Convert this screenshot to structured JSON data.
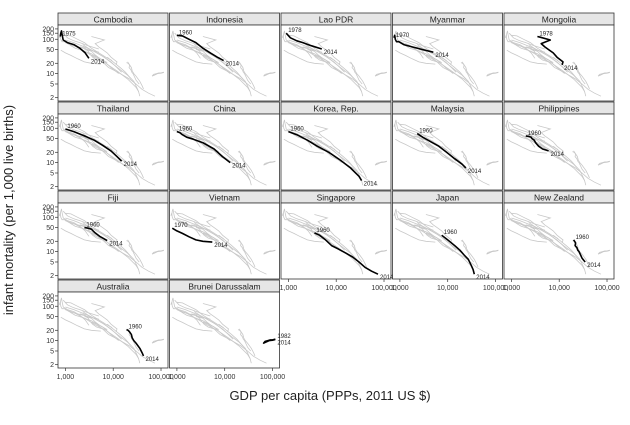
{
  "chart_data": {
    "type": "line",
    "title": "",
    "xlabel": "GDP per capita (PPPs, 2011 US $)",
    "ylabel": "infant mortality (per 1,000 live births)",
    "x_scale": "log",
    "y_scale": "log",
    "xlim": [
      700,
      140000
    ],
    "ylim": [
      1.6,
      260
    ],
    "x_ticks": [
      1000,
      10000,
      100000
    ],
    "x_tick_labels": [
      "1,000",
      "10,000",
      "100,000"
    ],
    "y_ticks": [
      2,
      5,
      10,
      20,
      50,
      100,
      150,
      200
    ],
    "y_tick_labels": [
      "2",
      "5",
      "10",
      "20",
      "50",
      "100",
      "150",
      "200"
    ],
    "grid": false,
    "legend": "none",
    "colors": {
      "highlight": "#000000",
      "background": "#c8c8c8",
      "strip": "#e6e6e6"
    },
    "panels": [
      {
        "name": "Cambodia",
        "start_label": "1975",
        "end_label": "2014",
        "data": [
          [
            780,
            120
          ],
          [
            800,
            150
          ],
          [
            830,
            175
          ],
          [
            850,
            140
          ],
          [
            900,
            95
          ],
          [
            1100,
            80
          ],
          [
            1500,
            70
          ],
          [
            2000,
            55
          ],
          [
            2600,
            40
          ],
          [
            3100,
            28
          ]
        ]
      },
      {
        "name": "Indonesia",
        "start_label": "1960",
        "end_label": "2014",
        "data": [
          [
            1000,
            130
          ],
          [
            1300,
            125
          ],
          [
            1800,
            100
          ],
          [
            2500,
            80
          ],
          [
            3500,
            55
          ],
          [
            5000,
            40
          ],
          [
            7000,
            30
          ],
          [
            9500,
            24
          ]
        ]
      },
      {
        "name": "Lao PDR",
        "start_label": "1978",
        "end_label": "2014",
        "data": [
          [
            900,
            150
          ],
          [
            1100,
            110
          ],
          [
            1500,
            90
          ],
          [
            2000,
            80
          ],
          [
            3000,
            65
          ],
          [
            5000,
            52
          ]
        ]
      },
      {
        "name": "Myanmar",
        "start_label": "1970",
        "end_label": "2014",
        "data": [
          [
            750,
            110
          ],
          [
            780,
            130
          ],
          [
            800,
            100
          ],
          [
            850,
            85
          ],
          [
            950,
            85
          ],
          [
            1200,
            70
          ],
          [
            1800,
            60
          ],
          [
            3000,
            50
          ],
          [
            5000,
            42
          ]
        ]
      },
      {
        "name": "Mongolia",
        "start_label": "1978",
        "end_label": "2014",
        "data": [
          [
            3500,
            120
          ],
          [
            4000,
            115
          ],
          [
            6500,
            95
          ],
          [
            4200,
            75
          ],
          [
            5000,
            60
          ],
          [
            6000,
            50
          ],
          [
            7500,
            40
          ],
          [
            9000,
            30
          ],
          [
            12000,
            22
          ],
          [
            11500,
            18
          ]
        ]
      },
      {
        "name": "Thailand",
        "start_label": "1960",
        "end_label": "2014",
        "data": [
          [
            1000,
            95
          ],
          [
            1500,
            80
          ],
          [
            2500,
            60
          ],
          [
            4000,
            45
          ],
          [
            6000,
            32
          ],
          [
            9000,
            22
          ],
          [
            12000,
            15
          ],
          [
            15000,
            11
          ]
        ]
      },
      {
        "name": "China",
        "start_label": "1960",
        "end_label": "2014",
        "data": [
          [
            1000,
            80
          ],
          [
            1150,
            75
          ],
          [
            1300,
            65
          ],
          [
            1600,
            55
          ],
          [
            2200,
            48
          ],
          [
            3500,
            38
          ],
          [
            6000,
            25
          ],
          [
            9000,
            15
          ],
          [
            13000,
            10
          ]
        ]
      },
      {
        "name": "Korea, Rep.",
        "start_label": "1960",
        "end_label": "2014",
        "data": [
          [
            1000,
            80
          ],
          [
            1500,
            65
          ],
          [
            2500,
            45
          ],
          [
            4000,
            30
          ],
          [
            7000,
            20
          ],
          [
            12000,
            12
          ],
          [
            20000,
            7
          ],
          [
            30000,
            4
          ],
          [
            34000,
            3
          ]
        ]
      },
      {
        "name": "Malaysia",
        "start_label": "1960",
        "end_label": "2014",
        "data": [
          [
            2300,
            70
          ],
          [
            3000,
            55
          ],
          [
            4500,
            40
          ],
          [
            6500,
            30
          ],
          [
            9500,
            20
          ],
          [
            14000,
            13
          ],
          [
            20000,
            9
          ],
          [
            24000,
            7
          ]
        ]
      },
      {
        "name": "Philippines",
        "start_label": "1960",
        "end_label": "2014",
        "data": [
          [
            2000,
            60
          ],
          [
            2300,
            58
          ],
          [
            2600,
            55
          ],
          [
            2700,
            50
          ],
          [
            3000,
            45
          ],
          [
            3200,
            38
          ],
          [
            3700,
            30
          ],
          [
            4500,
            25
          ],
          [
            6000,
            22
          ]
        ]
      },
      {
        "name": "Fiji",
        "start_label": "1960",
        "end_label": "2014",
        "data": [
          [
            2500,
            50
          ],
          [
            3000,
            48
          ],
          [
            3500,
            45
          ],
          [
            3800,
            40
          ],
          [
            4200,
            35
          ],
          [
            5200,
            28
          ],
          [
            6300,
            24
          ],
          [
            7500,
            21
          ]
        ]
      },
      {
        "name": "Vietnam",
        "start_label": "1970",
        "end_label": "2014",
        "data": [
          [
            800,
            48
          ],
          [
            1000,
            40
          ],
          [
            1300,
            34
          ],
          [
            1800,
            27
          ],
          [
            2500,
            22
          ],
          [
            3500,
            20
          ],
          [
            5500,
            19
          ]
        ]
      },
      {
        "name": "Singapore",
        "start_label": "1960",
        "end_label": "2014",
        "data": [
          [
            3500,
            35
          ],
          [
            4500,
            30
          ],
          [
            6000,
            22
          ],
          [
            8000,
            15
          ],
          [
            11000,
            12
          ],
          [
            16000,
            9
          ],
          [
            22000,
            7
          ],
          [
            30000,
            5
          ],
          [
            40000,
            3.5
          ],
          [
            55000,
            2.7
          ],
          [
            75000,
            2.2
          ]
        ]
      },
      {
        "name": "Japan",
        "start_label": "1960",
        "end_label": "2014",
        "data": [
          [
            7500,
            30
          ],
          [
            10000,
            22
          ],
          [
            14000,
            15
          ],
          [
            18000,
            11
          ],
          [
            22000,
            8
          ],
          [
            27000,
            6
          ],
          [
            31000,
            4
          ],
          [
            34000,
            3
          ],
          [
            36000,
            2.2
          ]
        ]
      },
      {
        "name": "New Zealand",
        "start_label": "1960",
        "end_label": "2014",
        "data": [
          [
            20000,
            22
          ],
          [
            21000,
            20
          ],
          [
            22000,
            18
          ],
          [
            21500,
            15
          ],
          [
            23500,
            13
          ],
          [
            24500,
            11
          ],
          [
            26000,
            10
          ],
          [
            28000,
            8
          ],
          [
            30000,
            6.5
          ],
          [
            33000,
            5.5
          ],
          [
            35000,
            5
          ]
        ]
      },
      {
        "name": "Australia",
        "start_label": "1960",
        "end_label": "2014",
        "data": [
          [
            19000,
            21
          ],
          [
            20500,
            20
          ],
          [
            22000,
            18
          ],
          [
            24000,
            15
          ],
          [
            25000,
            12
          ],
          [
            27000,
            10
          ],
          [
            30000,
            8.5
          ],
          [
            36000,
            6
          ],
          [
            40000,
            4.5
          ],
          [
            43000,
            3.6
          ]
        ]
      },
      {
        "name": "Brunei Darussalam",
        "start_label": "1982",
        "end_label": "2014",
        "data": [
          [
            115000,
            11
          ],
          [
            100000,
            10.5
          ],
          [
            90000,
            10.5
          ],
          [
            80000,
            10
          ],
          [
            70000,
            9.5
          ],
          [
            65000,
            8.5
          ],
          [
            72000,
            9
          ],
          [
            85000,
            10
          ],
          [
            100000,
            10.3
          ],
          [
            115000,
            10.8
          ]
        ]
      }
    ]
  }
}
